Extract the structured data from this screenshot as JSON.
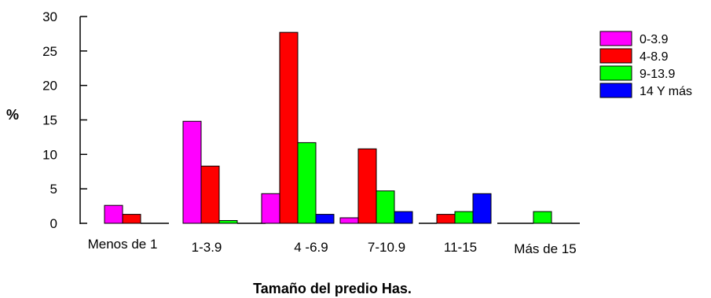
{
  "chart_data": {
    "type": "bar",
    "title": "",
    "xlabel": "Tamaño del predio Has.",
    "ylabel": "%",
    "ylim": [
      0,
      30
    ],
    "yticks": [
      0,
      5,
      10,
      15,
      20,
      25,
      30
    ],
    "grid": false,
    "legend_position": "right",
    "categories": [
      "Menos de 1",
      "1-3.9",
      "4 -6.9",
      "7-10.9",
      "11-15",
      "Más de 15"
    ],
    "series": [
      {
        "name": "0-3.9",
        "color": "#ff00ff",
        "values": [
          2.6,
          14.8,
          4.3,
          0.8,
          0,
          0
        ]
      },
      {
        "name": "4-8.9",
        "color": "#ff0000",
        "values": [
          1.3,
          8.3,
          27.7,
          10.8,
          1.3,
          0
        ]
      },
      {
        "name": "9-13.9",
        "color": "#00ff00",
        "values": [
          0,
          0.4,
          11.7,
          4.7,
          1.7,
          1.7
        ]
      },
      {
        "name": "14 Y más",
        "color": "#0000ff",
        "values": [
          0,
          0,
          1.3,
          1.7,
          4.3,
          0
        ]
      }
    ]
  }
}
